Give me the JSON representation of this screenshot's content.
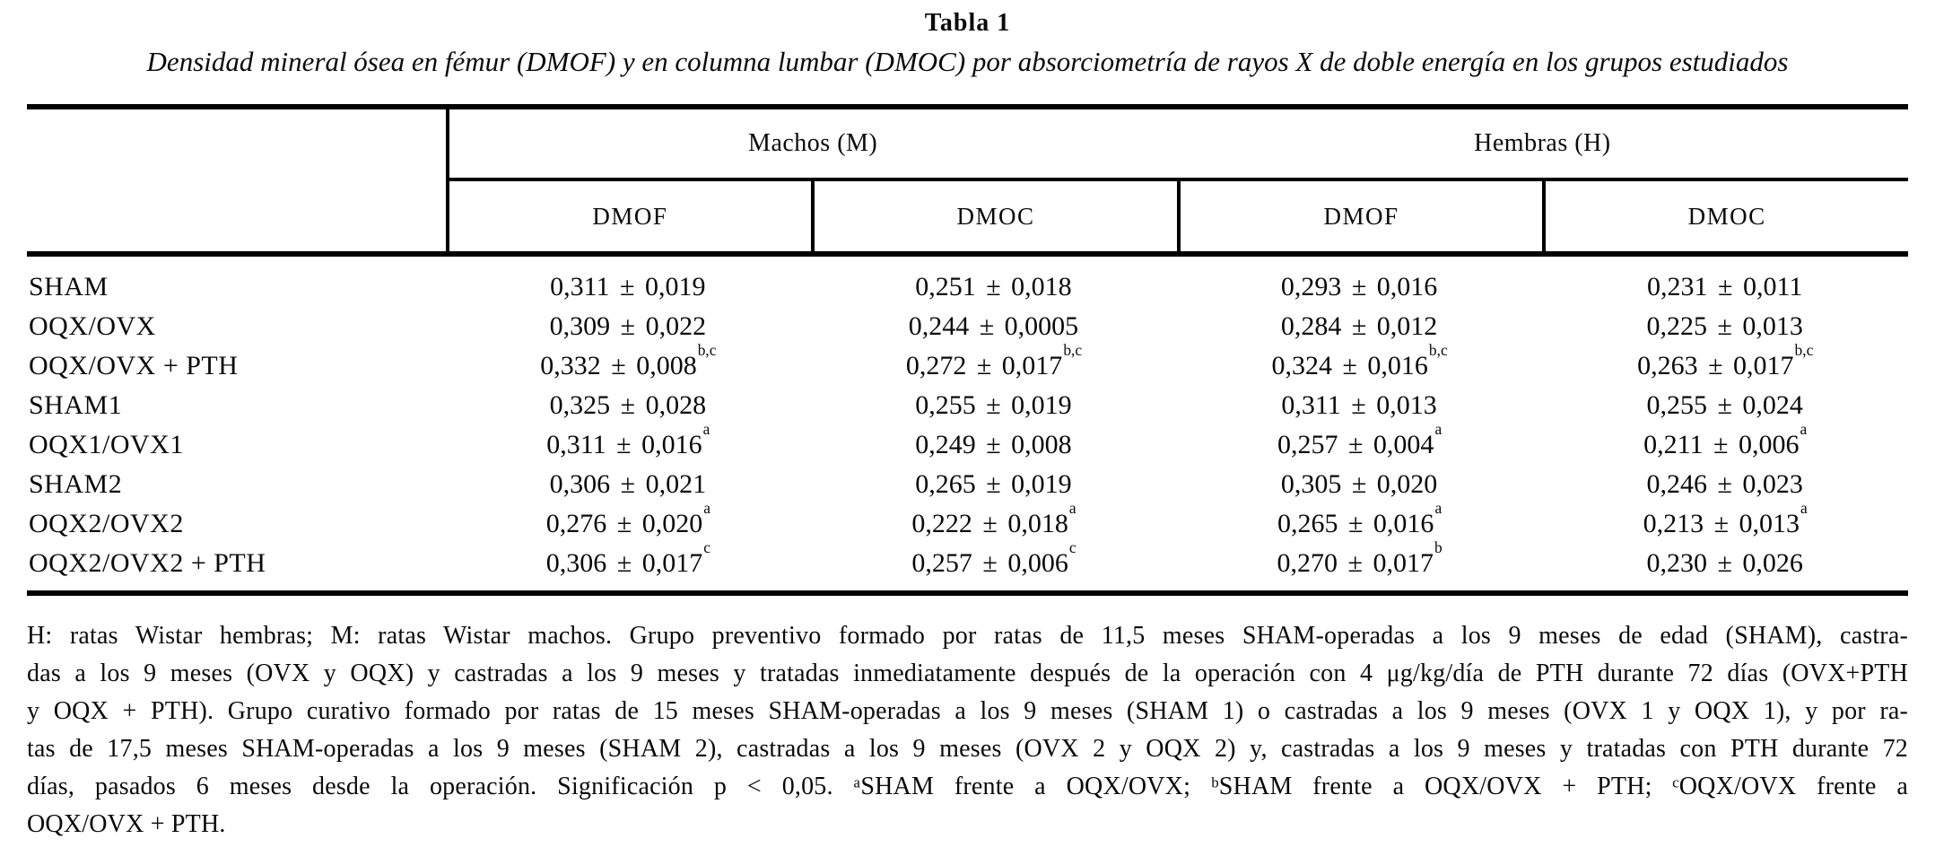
{
  "page": {
    "title": "Tabla 1",
    "subtitle": "Densidad mineral ósea en fémur (DMOF) y en columna lumbar (DMOC) por absorciometría de rayos X de doble energía en los grupos estudiados"
  },
  "table": {
    "group_headers": [
      {
        "label": "Machos (M)"
      },
      {
        "label": "Hembras (H)"
      }
    ],
    "col_headers": [
      "DMOF",
      "DMOC",
      "DMOF",
      "DMOC"
    ],
    "rows": [
      {
        "label": "SHAM",
        "cells": [
          {
            "v": "0,311 ± 0,019"
          },
          {
            "v": "0,251 ± 0,018"
          },
          {
            "v": "0,293 ± 0,016"
          },
          {
            "v": "0,231 ± 0,011"
          }
        ]
      },
      {
        "label": "OQX/OVX",
        "cells": [
          {
            "v": "0,309 ± 0,022"
          },
          {
            "v": "0,244 ± 0,0005"
          },
          {
            "v": "0,284 ± 0,012"
          },
          {
            "v": "0,225 ± 0,013"
          }
        ]
      },
      {
        "label": "OQX/OVX + PTH",
        "cells": [
          {
            "v": "0,332 ± 0,008",
            "s": "b,c"
          },
          {
            "v": "0,272 ± 0,017",
            "s": "b,c"
          },
          {
            "v": "0,324 ± 0,016",
            "s": "b,c"
          },
          {
            "v": "0,263 ± 0,017",
            "s": "b,c"
          }
        ]
      },
      {
        "label": "SHAM1",
        "cells": [
          {
            "v": "0,325 ± 0,028"
          },
          {
            "v": "0,255 ± 0,019"
          },
          {
            "v": "0,311 ± 0,013"
          },
          {
            "v": "0,255 ± 0,024"
          }
        ]
      },
      {
        "label": "OQX1/OVX1",
        "cells": [
          {
            "v": "0,311 ± 0,016",
            "s": "a"
          },
          {
            "v": "0,249 ± 0,008"
          },
          {
            "v": "0,257 ± 0,004",
            "s": "a"
          },
          {
            "v": "0,211 ± 0,006",
            "s": "a"
          }
        ]
      },
      {
        "label": "SHAM2",
        "cells": [
          {
            "v": "0,306 ± 0,021"
          },
          {
            "v": "0,265 ± 0,019"
          },
          {
            "v": "0,305 ± 0,020"
          },
          {
            "v": "0,246 ± 0,023"
          }
        ]
      },
      {
        "label": "OQX2/OVX2",
        "cells": [
          {
            "v": "0,276 ± 0,020",
            "s": "a"
          },
          {
            "v": "0,222 ± 0,018",
            "s": "a"
          },
          {
            "v": "0,265 ± 0,016",
            "s": "a"
          },
          {
            "v": "0,213 ± 0,013",
            "s": "a"
          }
        ]
      },
      {
        "label": "OQX2/OVX2 + PTH",
        "cells": [
          {
            "v": "0,306 ± 0,017",
            "s": "c"
          },
          {
            "v": "0,257 ± 0,006",
            "s": "c"
          },
          {
            "v": "0,270 ± 0,017",
            "s": "b"
          },
          {
            "v": "0,230 ± 0,026"
          }
        ]
      }
    ]
  },
  "footnote": {
    "lines": [
      "H: ratas Wistar hembras; M: ratas Wistar machos. Grupo preventivo formado por ratas de 11,5 meses SHAM-operadas a los 9 meses de edad (SHAM), castra-",
      "das a los 9 meses (OVX y OQX) y castradas a los 9 meses y tratadas inmediatamente después de la operación con 4 μg/kg/día de PTH durante 72 días (OVX+PTH",
      "y OQX + PTH). Grupo curativo formado por ratas de 15 meses SHAM-operadas a los 9 meses (SHAM 1) o castradas a los 9 meses (OVX 1 y OQX 1), y por ra-",
      "tas de 17,5 meses SHAM-operadas a los 9 meses (SHAM 2), castradas a los 9 meses (OVX 2 y OQX 2) y, castradas a los 9 meses y tratadas con PTH durante 72",
      "días, pasados 6 meses desde la operación. Significación p < 0,05. ᵃSHAM frente a OQX/OVX; ᵇSHAM frente a OQX/OVX + PTH; ᶜOQX/OVX frente a",
      "OQX/OVX + PTH."
    ]
  }
}
